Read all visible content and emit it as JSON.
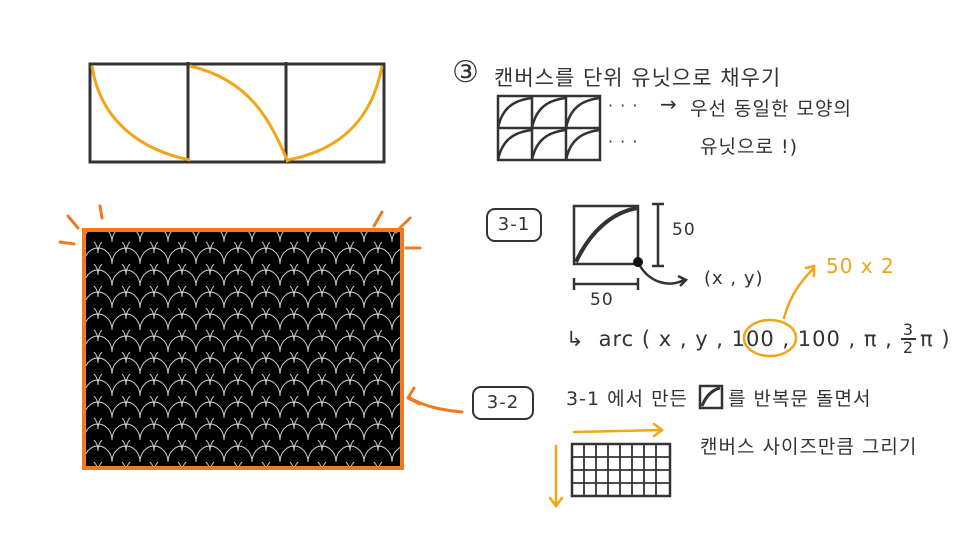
{
  "step3": {
    "number": "③",
    "title": "캔버스를 단위 유닛으로 채우기",
    "dots_1": "· · ·",
    "dots_2": "· · ·",
    "arrow": "→",
    "note_line1": "우선 동일한 모양의",
    "note_line2": "유닛으로 !)"
  },
  "step3_1": {
    "label": "3-1",
    "height_label": "50",
    "width_label": "50",
    "point_label": "(x , y)",
    "arc_prefix": "↳",
    "arc_call": "arc ( x , y , 100 , 100 , π ,",
    "frac_num": "3",
    "frac_den": "2",
    "arc_suffix": "π )",
    "annotation": "50 x 2"
  },
  "step3_2": {
    "label": "3-2",
    "text_before": "3-1 에서 만든",
    "text_after": "를 반복문 돌면서",
    "line2": "캔버스 사이즈만큼 그리기"
  },
  "colors": {
    "ink": "#333333",
    "yellow": "#f2a516",
    "orange": "#f07a22",
    "canvas_fill": "#000000"
  }
}
